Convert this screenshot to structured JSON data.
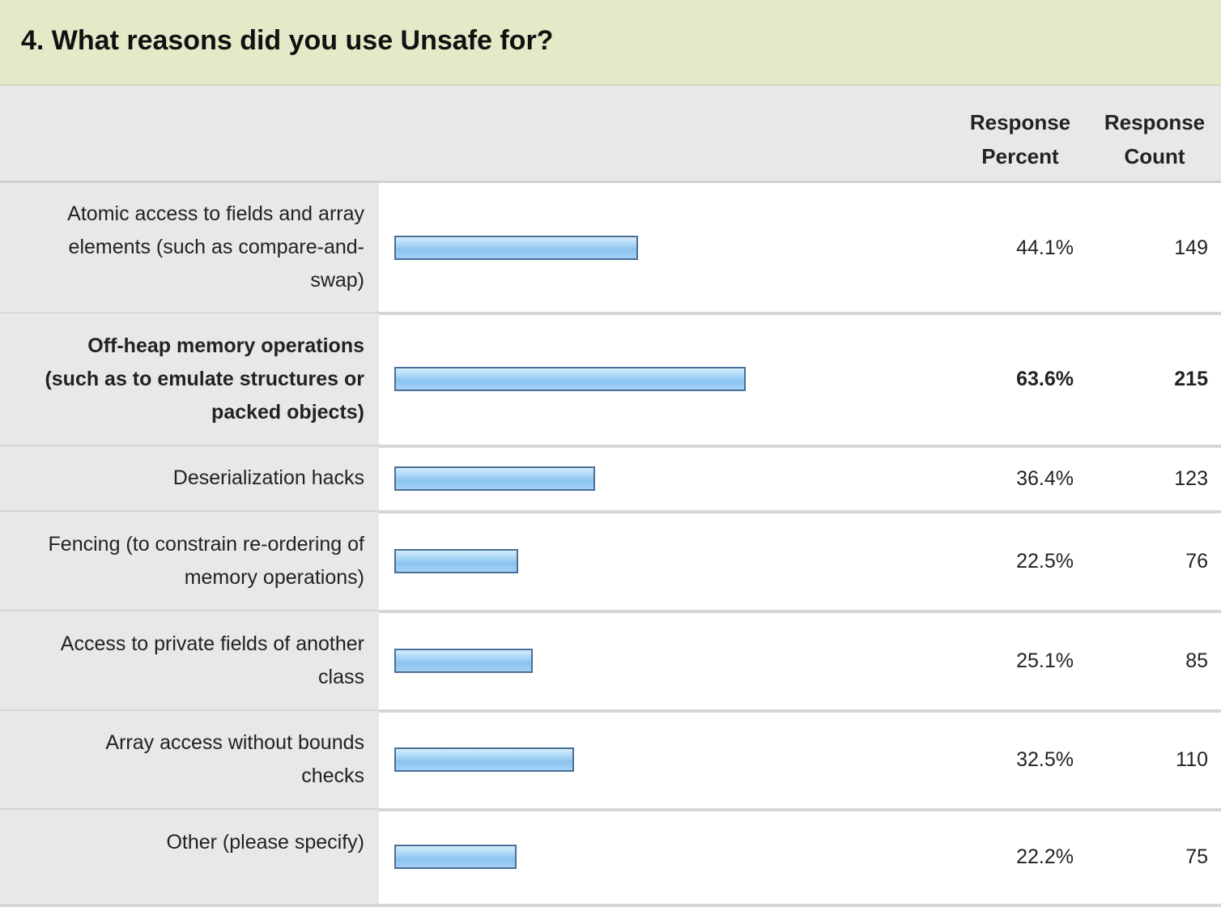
{
  "title": "4. What reasons did you use Unsafe for?",
  "headers": {
    "percent_line1": "Response",
    "percent_line2": "Percent",
    "count_line1": "Response",
    "count_line2": "Count"
  },
  "colors": {
    "title_bg": "#e5e9c8",
    "label_bg": "#e8e8e8",
    "bar_fill": "#9ccbf2",
    "bar_border": "#4a6f96"
  },
  "chart_data": {
    "type": "bar",
    "orientation": "horizontal",
    "title": "4. What reasons did you use Unsafe for?",
    "xlim": [
      0,
      100
    ],
    "columns": [
      "Response Percent",
      "Response Count"
    ],
    "rows": [
      {
        "label": "Atomic access to fields and array elements (such as compare-and-swap)",
        "label_lines": [
          "Atomic access to fields and array",
          "elements (such as compare-and-",
          "swap)"
        ],
        "percent": 44.1,
        "percent_text": "44.1%",
        "count": "149",
        "bold": false
      },
      {
        "label": "Off-heap memory operations (such as to emulate structures or packed objects)",
        "label_lines": [
          "Off-heap memory operations",
          "(such as to emulate structures or",
          "packed objects)"
        ],
        "percent": 63.6,
        "percent_text": "63.6%",
        "count": "215",
        "bold": true
      },
      {
        "label": "Deserialization hacks",
        "label_lines": [
          "Deserialization hacks"
        ],
        "percent": 36.4,
        "percent_text": "36.4%",
        "count": "123",
        "bold": false
      },
      {
        "label": "Fencing (to constrain re-ordering of memory operations)",
        "label_lines": [
          "Fencing (to constrain re-ordering of",
          "memory operations)"
        ],
        "percent": 22.5,
        "percent_text": "22.5%",
        "count": "76",
        "bold": false
      },
      {
        "label": "Access to private fields of another class",
        "label_lines": [
          "Access to private fields of another",
          "class"
        ],
        "percent": 25.1,
        "percent_text": "25.1%",
        "count": "85",
        "bold": false
      },
      {
        "label": "Array access without bounds checks",
        "label_lines": [
          "Array access without bounds",
          "checks"
        ],
        "percent": 32.5,
        "percent_text": "32.5%",
        "count": "110",
        "bold": false
      },
      {
        "label": "Other (please specify)",
        "label_lines": [
          "Other (please specify)"
        ],
        "percent": 22.2,
        "percent_text": "22.2%",
        "count": "75",
        "bold": false
      }
    ]
  }
}
